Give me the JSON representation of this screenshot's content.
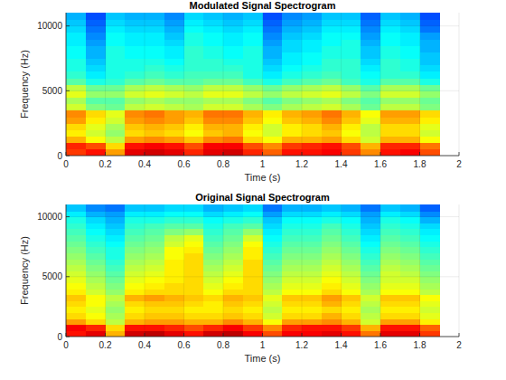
{
  "chart_data": [
    {
      "type": "heatmap",
      "title": "Modulated Signal Spectrogram",
      "x_label": "Time (s)",
      "y_label": "Frequency (Hz)",
      "xlim": [
        0,
        2
      ],
      "ylim": [
        0,
        11025
      ],
      "xticks": [
        0,
        0.2,
        0.4,
        0.6,
        0.8,
        1,
        1.2,
        1.4,
        1.6,
        1.8,
        2
      ],
      "yticks": [
        0,
        5000,
        10000
      ],
      "grid": true,
      "clim": [
        0,
        100
      ],
      "x_bins": [
        0,
        0.1,
        0.2,
        0.3,
        0.4,
        0.5,
        0.6,
        0.7,
        0.8,
        0.9,
        1,
        1.1,
        1.2,
        1.3,
        1.4,
        1.5,
        1.6,
        1.7,
        1.8,
        1.9
      ],
      "y_bins": [
        0,
        500,
        1000,
        1500,
        2000,
        2500,
        3000,
        3500,
        4000,
        4500,
        5000,
        5500,
        6000,
        6500,
        7000,
        7500,
        8000,
        8500,
        9000,
        9500,
        10000,
        10500,
        11025
      ],
      "cells": [
        [
          82,
          86,
          72,
          90,
          92,
          90,
          84,
          90,
          92,
          84,
          78,
          86,
          86,
          88,
          82,
          74,
          86,
          88,
          80
        ],
        [
          84,
          80,
          66,
          86,
          88,
          86,
          80,
          88,
          88,
          80,
          74,
          82,
          84,
          86,
          80,
          70,
          84,
          84,
          76
        ],
        [
          70,
          62,
          56,
          72,
          74,
          72,
          68,
          74,
          76,
          66,
          62,
          70,
          70,
          72,
          66,
          58,
          70,
          70,
          62
        ],
        [
          64,
          58,
          52,
          66,
          68,
          66,
          62,
          68,
          70,
          62,
          58,
          64,
          66,
          68,
          62,
          56,
          66,
          66,
          58
        ],
        [
          66,
          60,
          54,
          68,
          70,
          68,
          64,
          70,
          70,
          64,
          58,
          64,
          66,
          70,
          64,
          56,
          66,
          66,
          60
        ],
        [
          72,
          64,
          58,
          72,
          74,
          72,
          68,
          74,
          74,
          68,
          62,
          68,
          70,
          74,
          68,
          60,
          70,
          70,
          64
        ],
        [
          74,
          66,
          60,
          74,
          76,
          72,
          70,
          76,
          76,
          70,
          64,
          70,
          72,
          76,
          70,
          62,
          72,
          72,
          66
        ],
        [
          58,
          50,
          48,
          56,
          58,
          56,
          54,
          58,
          58,
          54,
          50,
          54,
          56,
          58,
          54,
          48,
          56,
          56,
          50
        ],
        [
          54,
          46,
          46,
          52,
          54,
          52,
          52,
          54,
          54,
          50,
          46,
          50,
          52,
          54,
          50,
          46,
          52,
          52,
          48
        ],
        [
          60,
          52,
          52,
          58,
          60,
          58,
          56,
          60,
          60,
          56,
          52,
          56,
          58,
          60,
          56,
          50,
          58,
          58,
          52
        ],
        [
          56,
          48,
          48,
          54,
          56,
          54,
          52,
          56,
          56,
          52,
          48,
          52,
          54,
          56,
          52,
          46,
          54,
          54,
          48
        ],
        [
          46,
          40,
          42,
          46,
          48,
          46,
          46,
          48,
          48,
          44,
          40,
          44,
          46,
          48,
          44,
          40,
          46,
          46,
          40
        ],
        [
          42,
          36,
          40,
          42,
          44,
          42,
          44,
          44,
          44,
          40,
          36,
          40,
          42,
          44,
          42,
          38,
          42,
          42,
          36
        ],
        [
          40,
          34,
          40,
          40,
          42,
          40,
          42,
          42,
          42,
          40,
          34,
          38,
          40,
          42,
          42,
          36,
          42,
          40,
          34
        ],
        [
          40,
          32,
          40,
          40,
          40,
          38,
          42,
          42,
          40,
          40,
          32,
          36,
          38,
          42,
          42,
          34,
          42,
          40,
          32
        ],
        [
          38,
          30,
          40,
          38,
          38,
          36,
          42,
          40,
          38,
          40,
          30,
          36,
          38,
          40,
          40,
          32,
          40,
          38,
          32
        ],
        [
          38,
          30,
          40,
          38,
          38,
          36,
          42,
          40,
          38,
          40,
          30,
          34,
          36,
          40,
          40,
          32,
          40,
          38,
          30
        ],
        [
          36,
          28,
          38,
          36,
          36,
          34,
          40,
          38,
          36,
          38,
          28,
          34,
          36,
          38,
          40,
          30,
          38,
          36,
          30
        ],
        [
          36,
          26,
          38,
          36,
          36,
          32,
          40,
          38,
          36,
          38,
          26,
          32,
          34,
          38,
          38,
          28,
          38,
          36,
          28
        ],
        [
          34,
          24,
          36,
          34,
          34,
          30,
          38,
          36,
          34,
          36,
          24,
          30,
          32,
          36,
          36,
          26,
          36,
          34,
          24
        ],
        [
          32,
          22,
          34,
          32,
          32,
          28,
          36,
          34,
          32,
          34,
          22,
          28,
          30,
          34,
          34,
          24,
          34,
          32,
          22
        ],
        [
          30,
          20,
          32,
          30,
          30,
          26,
          34,
          32,
          30,
          32,
          20,
          26,
          28,
          32,
          32,
          22,
          32,
          30,
          20
        ]
      ]
    },
    {
      "type": "heatmap",
      "title": "Original Signal Spectrogram",
      "x_label": "Time (s)",
      "y_label": "Frequency (Hz)",
      "xlim": [
        0,
        2
      ],
      "ylim": [
        0,
        11025
      ],
      "xticks": [
        0,
        0.2,
        0.4,
        0.6,
        0.8,
        1,
        1.2,
        1.4,
        1.6,
        1.8,
        2
      ],
      "yticks": [
        0,
        5000,
        10000
      ],
      "grid": true,
      "clim": [
        0,
        100
      ],
      "x_bins": [
        0,
        0.1,
        0.2,
        0.3,
        0.4,
        0.5,
        0.6,
        0.7,
        0.8,
        0.9,
        1,
        1.1,
        1.2,
        1.3,
        1.4,
        1.5,
        1.6,
        1.7,
        1.8,
        1.9
      ],
      "y_bins": [
        0,
        500,
        1000,
        1500,
        2000,
        2500,
        3000,
        3500,
        4000,
        4500,
        5000,
        5500,
        6000,
        6500,
        7000,
        7500,
        8000,
        8500,
        9000,
        9500,
        10000,
        10500,
        11025
      ],
      "cells": [
        [
          86,
          90,
          70,
          92,
          94,
          90,
          86,
          92,
          94,
          88,
          80,
          88,
          88,
          90,
          86,
          76,
          90,
          90,
          82
        ],
        [
          88,
          84,
          66,
          86,
          86,
          84,
          80,
          84,
          88,
          82,
          74,
          84,
          86,
          86,
          82,
          70,
          86,
          86,
          78
        ],
        [
          72,
          66,
          56,
          70,
          72,
          72,
          70,
          70,
          74,
          70,
          62,
          72,
          72,
          74,
          70,
          58,
          72,
          72,
          64
        ],
        [
          66,
          62,
          54,
          66,
          68,
          68,
          66,
          66,
          68,
          66,
          58,
          66,
          66,
          70,
          66,
          56,
          66,
          66,
          60
        ],
        [
          64,
          60,
          52,
          64,
          66,
          66,
          64,
          64,
          66,
          64,
          56,
          64,
          64,
          66,
          64,
          54,
          64,
          64,
          58
        ],
        [
          66,
          62,
          54,
          66,
          68,
          68,
          66,
          64,
          68,
          66,
          58,
          66,
          66,
          70,
          66,
          56,
          66,
          66,
          60
        ],
        [
          68,
          62,
          56,
          70,
          72,
          70,
          68,
          66,
          70,
          68,
          60,
          68,
          68,
          72,
          68,
          58,
          68,
          68,
          62
        ],
        [
          64,
          58,
          52,
          64,
          66,
          66,
          66,
          62,
          66,
          66,
          56,
          62,
          62,
          66,
          62,
          54,
          62,
          62,
          56
        ],
        [
          62,
          56,
          50,
          62,
          64,
          66,
          66,
          60,
          64,
          66,
          54,
          60,
          60,
          64,
          60,
          52,
          60,
          60,
          54
        ],
        [
          60,
          54,
          48,
          60,
          62,
          64,
          66,
          58,
          62,
          66,
          52,
          58,
          58,
          62,
          58,
          50,
          58,
          58,
          52
        ],
        [
          58,
          52,
          46,
          58,
          60,
          64,
          66,
          56,
          60,
          66,
          50,
          56,
          56,
          60,
          56,
          48,
          58,
          56,
          50
        ],
        [
          56,
          50,
          44,
          56,
          58,
          64,
          66,
          54,
          58,
          66,
          48,
          54,
          54,
          58,
          54,
          46,
          56,
          54,
          48
        ],
        [
          54,
          48,
          42,
          54,
          56,
          64,
          66,
          52,
          56,
          66,
          46,
          52,
          52,
          56,
          52,
          44,
          54,
          52,
          46
        ],
        [
          52,
          46,
          40,
          52,
          54,
          62,
          66,
          50,
          54,
          64,
          44,
          50,
          50,
          54,
          50,
          42,
          52,
          50,
          44
        ],
        [
          50,
          44,
          40,
          50,
          52,
          62,
          64,
          48,
          52,
          64,
          42,
          48,
          48,
          52,
          48,
          40,
          50,
          48,
          42
        ],
        [
          48,
          42,
          38,
          48,
          50,
          58,
          62,
          46,
          50,
          62,
          40,
          46,
          46,
          50,
          46,
          38,
          48,
          46,
          40
        ],
        [
          46,
          40,
          36,
          46,
          48,
          56,
          60,
          44,
          48,
          58,
          38,
          44,
          44,
          48,
          44,
          36,
          46,
          44,
          38
        ],
        [
          44,
          38,
          34,
          44,
          46,
          50,
          52,
          42,
          46,
          52,
          36,
          42,
          42,
          46,
          42,
          34,
          44,
          42,
          36
        ],
        [
          42,
          36,
          32,
          42,
          44,
          46,
          46,
          40,
          44,
          46,
          34,
          40,
          40,
          44,
          40,
          32,
          42,
          40,
          34
        ],
        [
          40,
          34,
          30,
          40,
          40,
          42,
          42,
          38,
          40,
          42,
          32,
          38,
          38,
          40,
          38,
          30,
          40,
          38,
          30
        ],
        [
          36,
          30,
          28,
          36,
          36,
          38,
          38,
          34,
          36,
          38,
          28,
          34,
          34,
          36,
          34,
          28,
          36,
          34,
          26
        ],
        [
          32,
          26,
          24,
          32,
          32,
          34,
          34,
          30,
          32,
          34,
          24,
          30,
          30,
          32,
          30,
          24,
          32,
          30,
          22
        ]
      ]
    }
  ]
}
